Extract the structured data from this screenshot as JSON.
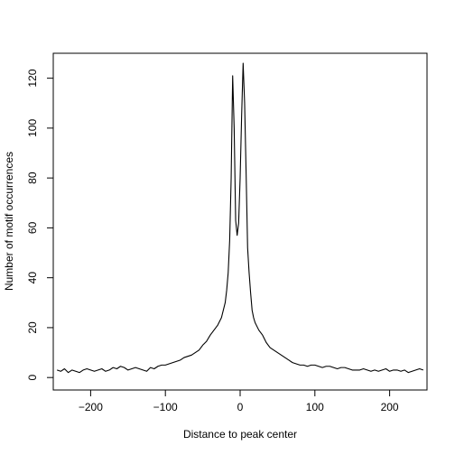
{
  "chart_data": {
    "type": "line",
    "title": "",
    "xlabel": "Distance to peak center",
    "ylabel": "Number of motif occurrences",
    "xlim": [
      -250,
      250
    ],
    "ylim": [
      -5,
      130
    ],
    "x_ticks": [
      -200,
      -100,
      0,
      100,
      200
    ],
    "y_ticks": [
      0,
      20,
      40,
      60,
      80,
      100,
      120
    ],
    "grid": false,
    "legend": "none",
    "series": [
      {
        "color": "#000000",
        "x": [
          -245,
          -240,
          -235,
          -230,
          -225,
          -220,
          -215,
          -210,
          -205,
          -200,
          -195,
          -190,
          -185,
          -180,
          -175,
          -170,
          -165,
          -160,
          -155,
          -150,
          -145,
          -140,
          -135,
          -130,
          -125,
          -120,
          -115,
          -110,
          -105,
          -100,
          -95,
          -90,
          -85,
          -80,
          -75,
          -70,
          -65,
          -60,
          -55,
          -50,
          -45,
          -40,
          -35,
          -30,
          -25,
          -20,
          -18,
          -16,
          -14,
          -12,
          -10,
          -8,
          -6,
          -4,
          -2,
          0,
          2,
          4,
          6,
          8,
          10,
          12,
          14,
          16,
          18,
          20,
          25,
          30,
          35,
          40,
          45,
          50,
          55,
          60,
          65,
          70,
          75,
          80,
          85,
          90,
          95,
          100,
          105,
          110,
          115,
          120,
          125,
          130,
          135,
          140,
          145,
          150,
          155,
          160,
          165,
          170,
          175,
          180,
          185,
          190,
          195,
          200,
          205,
          210,
          215,
          220,
          225,
          230,
          235,
          240,
          245
        ],
        "values": [
          3,
          2.5,
          3.5,
          2,
          3,
          2.5,
          2,
          3,
          3.5,
          3,
          2.5,
          3,
          3.5,
          2.5,
          3,
          4,
          3.5,
          4.5,
          4,
          3,
          3.5,
          4,
          3.5,
          3,
          2.5,
          4,
          3.5,
          4.5,
          5,
          5,
          5.5,
          6,
          6.5,
          7,
          8,
          8.5,
          9,
          10,
          11,
          13,
          14.5,
          17,
          19,
          21,
          24,
          30,
          35,
          42,
          55,
          80,
          121,
          100,
          63,
          57,
          62,
          80,
          105,
          126,
          110,
          82,
          52,
          42,
          34,
          27,
          24,
          22,
          19,
          17,
          14,
          12,
          11,
          10,
          9,
          8,
          7,
          6,
          5.5,
          5,
          5,
          4.5,
          5,
          5,
          4.5,
          4,
          4.5,
          4.5,
          4,
          3.5,
          4,
          4,
          3.5,
          3,
          3,
          3,
          3.5,
          3,
          2.5,
          3,
          2.5,
          3,
          3.5,
          2.5,
          3,
          3,
          2.5,
          3,
          2,
          2.5,
          3,
          3.5,
          3
        ]
      }
    ]
  }
}
